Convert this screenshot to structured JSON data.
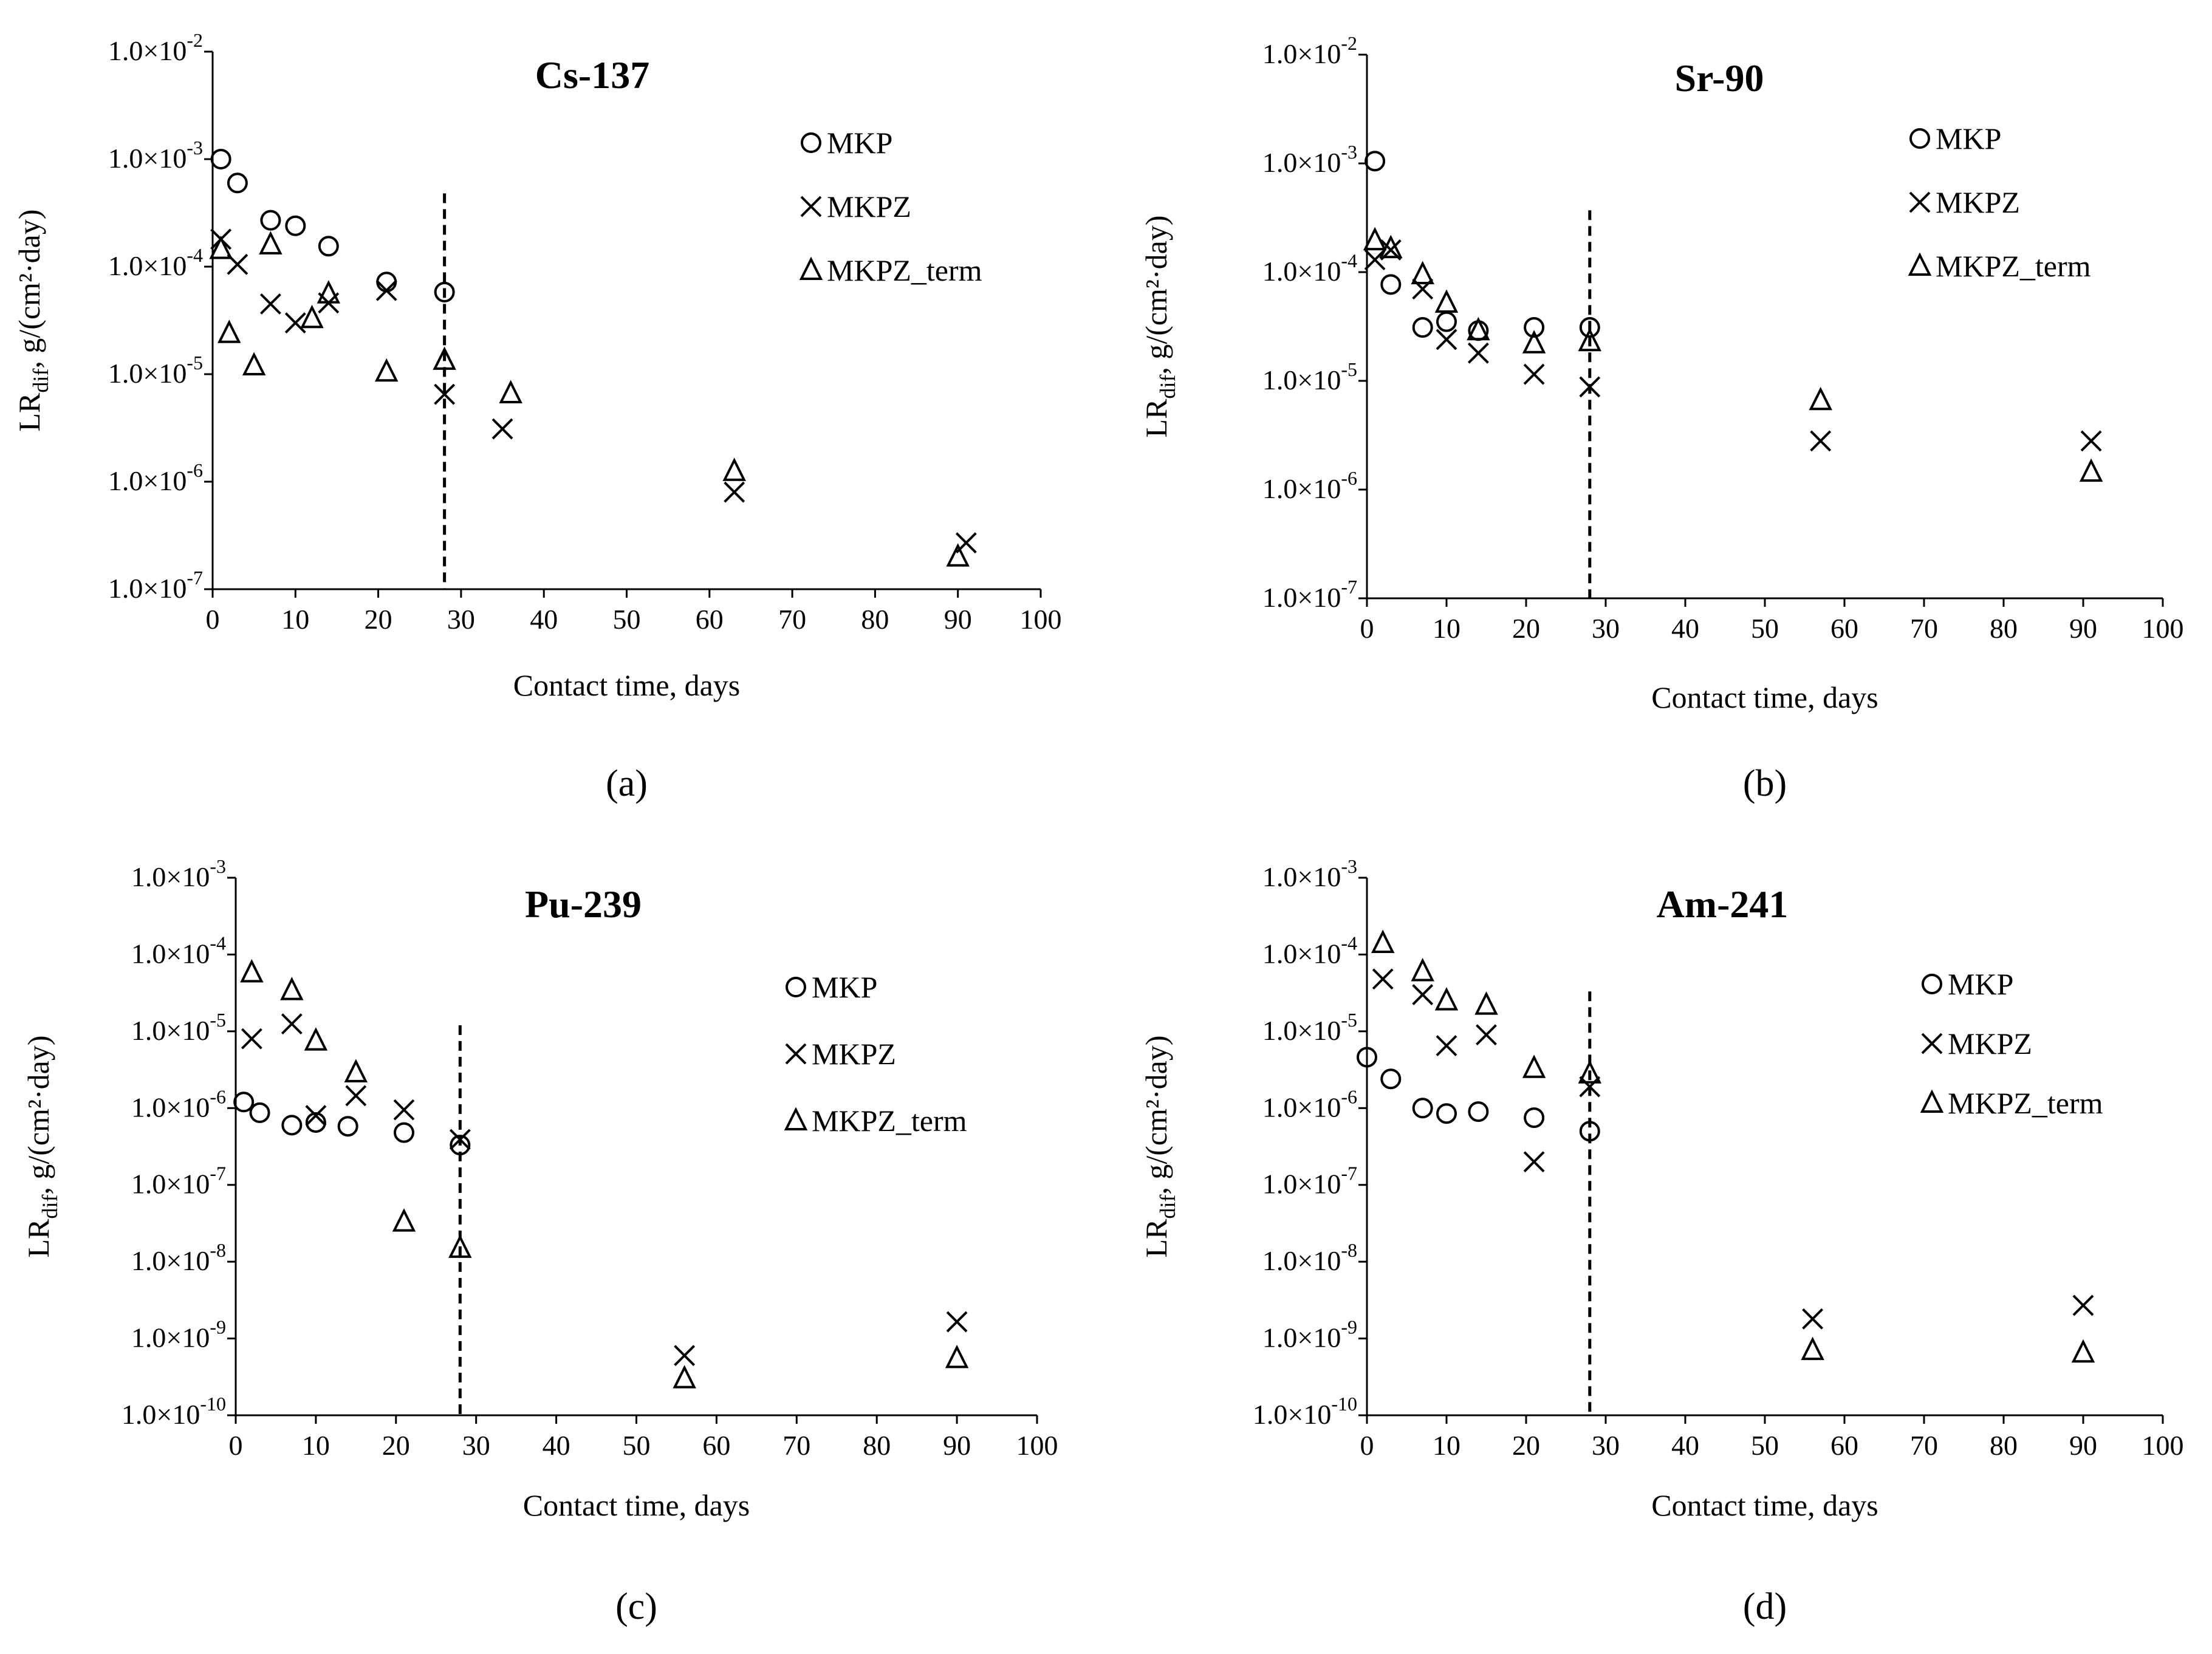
{
  "chart_data": [
    {
      "type": "scatter",
      "panel_label": "(a)",
      "title": "Cs-137",
      "xlabel": "Contact time, days",
      "ylabel_main": "LR",
      "ylabel_sub": "dif",
      "ylabel_rest": ", g/(cm²·day)",
      "xlim": [
        0,
        100
      ],
      "ylim_exp": [
        -7,
        -2
      ],
      "x_ticks": [
        0,
        10,
        20,
        30,
        40,
        50,
        60,
        70,
        80,
        90,
        100
      ],
      "x_tick_labels": [
        "0",
        "10",
        "20",
        "30",
        "40",
        "50",
        "60",
        "70",
        "80",
        "90",
        "100"
      ],
      "y_tick_labels": [
        {
          "mantissa": "1.0×10",
          "exp": "-7"
        },
        {
          "mantissa": "1.0×10",
          "exp": "-6"
        },
        {
          "mantissa": "1.0×10",
          "exp": "-5"
        },
        {
          "mantissa": "1.0×10",
          "exp": "-4"
        },
        {
          "mantissa": "1.0×10",
          "exp": "-3"
        },
        {
          "mantissa": "1.0×10",
          "exp": "-2"
        }
      ],
      "dashed_line_x": 28,
      "dashed_line_top": 0.00048,
      "legend_position": "top-right",
      "series": [
        {
          "name": "MKP",
          "marker": "circle",
          "points": [
            [
              1,
              0.001
            ],
            [
              3,
              0.0006
            ],
            [
              7,
              0.00027
            ],
            [
              10,
              0.00024
            ],
            [
              14,
              0.000155
            ],
            [
              21,
              7.2e-05
            ],
            [
              28,
              5.8e-05
            ]
          ]
        },
        {
          "name": "MKPZ",
          "marker": "x",
          "points": [
            [
              1,
              0.00018
            ],
            [
              3,
              0.000105
            ],
            [
              7,
              4.5e-05
            ],
            [
              10,
              3e-05
            ],
            [
              14,
              4.6e-05
            ],
            [
              21,
              6e-05
            ],
            [
              28,
              6.5e-06
            ],
            [
              35,
              3.1e-06
            ],
            [
              63,
              8e-07
            ],
            [
              91,
              2.7e-07
            ]
          ]
        },
        {
          "name": "MKPZ_term",
          "marker": "triangle",
          "points": [
            [
              1,
              0.000145
            ],
            [
              2,
              2.4e-05
            ],
            [
              5,
              1.2e-05
            ],
            [
              7,
              0.00016
            ],
            [
              12,
              3.3e-05
            ],
            [
              14,
              5.6e-05
            ],
            [
              21,
              1.05e-05
            ],
            [
              28,
              1.35e-05
            ],
            [
              36,
              6.6e-06
            ],
            [
              63,
              1.25e-06
            ],
            [
              90,
              2e-07
            ]
          ]
        }
      ]
    },
    {
      "type": "scatter",
      "panel_label": "(b)",
      "title": "Sr-90",
      "xlabel": "Contact time, days",
      "ylabel_main": "LR",
      "ylabel_sub": "dif",
      "ylabel_rest": ", g/(cm²·day)",
      "xlim": [
        0,
        100
      ],
      "ylim_exp": [
        -7,
        -2
      ],
      "x_ticks": [
        0,
        10,
        20,
        30,
        40,
        50,
        60,
        70,
        80,
        90,
        100
      ],
      "x_tick_labels": [
        "0",
        "10",
        "20",
        "30",
        "40",
        "50",
        "60",
        "70",
        "80",
        "90",
        "100"
      ],
      "y_tick_labels": [
        {
          "mantissa": "1.0×10",
          "exp": "-7"
        },
        {
          "mantissa": "1.0×10",
          "exp": "-6"
        },
        {
          "mantissa": "1.0×10",
          "exp": "-5"
        },
        {
          "mantissa": "1.0×10",
          "exp": "-4"
        },
        {
          "mantissa": "1.0×10",
          "exp": "-3"
        },
        {
          "mantissa": "1.0×10",
          "exp": "-2"
        }
      ],
      "dashed_line_x": 28,
      "dashed_line_top": 0.00037,
      "legend_position": "top-right",
      "series": [
        {
          "name": "MKP",
          "marker": "circle",
          "points": [
            [
              1,
              0.00105
            ],
            [
              3,
              7.7e-05
            ],
            [
              7,
              3.1e-05
            ],
            [
              10,
              3.5e-05
            ],
            [
              14,
              2.9e-05
            ],
            [
              21,
              3.1e-05
            ],
            [
              28,
              3.1e-05
            ]
          ]
        },
        {
          "name": "MKPZ",
          "marker": "x",
          "points": [
            [
              1,
              0.00013
            ],
            [
              3,
              0.00016
            ],
            [
              7,
              7e-05
            ],
            [
              10,
              2.4e-05
            ],
            [
              14,
              1.8e-05
            ],
            [
              21,
              1.15e-05
            ],
            [
              28,
              8.8e-06
            ],
            [
              57,
              2.8e-06
            ],
            [
              91,
              2.8e-06
            ]
          ]
        },
        {
          "name": "MKPZ_term",
          "marker": "triangle",
          "points": [
            [
              1,
              0.000195
            ],
            [
              3,
              0.000165
            ],
            [
              7,
              9.5e-05
            ],
            [
              10,
              5.2e-05
            ],
            [
              14,
              2.9e-05
            ],
            [
              21,
              2.2e-05
            ],
            [
              28,
              2.3e-05
            ],
            [
              57,
              6.6e-06
            ],
            [
              91,
              1.45e-06
            ]
          ]
        }
      ]
    },
    {
      "type": "scatter",
      "panel_label": "(c)",
      "title": "Pu-239",
      "xlabel": "Contact time, days",
      "ylabel_main": "LR",
      "ylabel_sub": "dif",
      "ylabel_rest": ", g/(cm²·day)",
      "xlim": [
        0,
        100
      ],
      "ylim_exp": [
        -10,
        -3
      ],
      "x_ticks": [
        0,
        10,
        20,
        30,
        40,
        50,
        60,
        70,
        80,
        90,
        100
      ],
      "x_tick_labels": [
        "0",
        "10",
        "20",
        "30",
        "40",
        "50",
        "60",
        "70",
        "80",
        "90",
        "100"
      ],
      "y_tick_labels": [
        {
          "mantissa": "1.0×10",
          "exp": "-10"
        },
        {
          "mantissa": "1.0×10",
          "exp": "-9"
        },
        {
          "mantissa": "1.0×10",
          "exp": "-8"
        },
        {
          "mantissa": "1.0×10",
          "exp": "-7"
        },
        {
          "mantissa": "1.0×10",
          "exp": "-6"
        },
        {
          "mantissa": "1.0×10",
          "exp": "-5"
        },
        {
          "mantissa": "1.0×10",
          "exp": "-4"
        },
        {
          "mantissa": "1.0×10",
          "exp": "-3"
        }
      ],
      "dashed_line_x": 28,
      "dashed_line_top": 1.2e-05,
      "legend_position": "top-right",
      "series": [
        {
          "name": "MKP",
          "marker": "circle",
          "points": [
            [
              1,
              1.2e-06
            ],
            [
              3,
              8.7e-07
            ],
            [
              7,
              6e-07
            ],
            [
              10,
              6.5e-07
            ],
            [
              14,
              5.8e-07
            ],
            [
              21,
              4.8e-07
            ],
            [
              28,
              3.3e-07
            ]
          ]
        },
        {
          "name": "MKPZ",
          "marker": "x",
          "points": [
            [
              2,
              8e-06
            ],
            [
              7,
              1.25e-05
            ],
            [
              10,
              8e-07
            ],
            [
              15,
              1.45e-06
            ],
            [
              21,
              9.5e-07
            ],
            [
              28,
              3.9e-07
            ],
            [
              56,
              6e-10
            ],
            [
              90,
              1.65e-09
            ]
          ]
        },
        {
          "name": "MKPZ_term",
          "marker": "triangle",
          "points": [
            [
              2,
              5.8e-05
            ],
            [
              7,
              3.4e-05
            ],
            [
              10,
              7.5e-06
            ],
            [
              15,
              2.9e-06
            ],
            [
              21,
              3.3e-08
            ],
            [
              28,
              1.5e-08
            ],
            [
              56,
              3e-10
            ],
            [
              90,
              5.5e-10
            ]
          ]
        }
      ]
    },
    {
      "type": "scatter",
      "panel_label": "(d)",
      "title": "Am-241",
      "xlabel": "Contact time, days",
      "ylabel_main": "LR",
      "ylabel_sub": "dif",
      "ylabel_rest": ", g/(cm²·day)",
      "xlim": [
        0,
        100
      ],
      "ylim_exp": [
        -10,
        -3
      ],
      "x_ticks": [
        0,
        10,
        20,
        30,
        40,
        50,
        60,
        70,
        80,
        90,
        100
      ],
      "x_tick_labels": [
        "0",
        "10",
        "20",
        "30",
        "40",
        "50",
        "60",
        "70",
        "80",
        "90",
        "100"
      ],
      "y_tick_labels": [
        {
          "mantissa": "1.0×10",
          "exp": "-10"
        },
        {
          "mantissa": "1.0×10",
          "exp": "-9"
        },
        {
          "mantissa": "1.0×10",
          "exp": "-8"
        },
        {
          "mantissa": "1.0×10",
          "exp": "-7"
        },
        {
          "mantissa": "1.0×10",
          "exp": "-6"
        },
        {
          "mantissa": "1.0×10",
          "exp": "-5"
        },
        {
          "mantissa": "1.0×10",
          "exp": "-4"
        },
        {
          "mantissa": "1.0×10",
          "exp": "-3"
        }
      ],
      "dashed_line_x": 28,
      "dashed_line_top": 3.3e-05,
      "legend_position": "top-right",
      "series": [
        {
          "name": "MKP",
          "marker": "circle",
          "points": [
            [
              0,
              4.6e-06
            ],
            [
              3,
              2.4e-06
            ],
            [
              7,
              1e-06
            ],
            [
              10,
              8.5e-07
            ],
            [
              14,
              9e-07
            ],
            [
              21,
              7.5e-07
            ],
            [
              28,
              5e-07
            ]
          ]
        },
        {
          "name": "MKPZ",
          "marker": "x",
          "points": [
            [
              2,
              4.8e-05
            ],
            [
              7,
              3e-05
            ],
            [
              10,
              6.5e-06
            ],
            [
              15,
              9e-06
            ],
            [
              21,
              2e-07
            ],
            [
              28,
              1.9e-06
            ],
            [
              56,
              1.8e-09
            ],
            [
              90,
              2.7e-09
            ]
          ]
        },
        {
          "name": "MKPZ_term",
          "marker": "triangle",
          "points": [
            [
              2,
              0.00014
            ],
            [
              7,
              6e-05
            ],
            [
              10,
              2.5e-05
            ],
            [
              15,
              2.2e-05
            ],
            [
              21,
              3.3e-06
            ],
            [
              28,
              2.8e-06
            ],
            [
              56,
              7e-10
            ],
            [
              90,
              6.5e-10
            ]
          ]
        }
      ]
    }
  ]
}
